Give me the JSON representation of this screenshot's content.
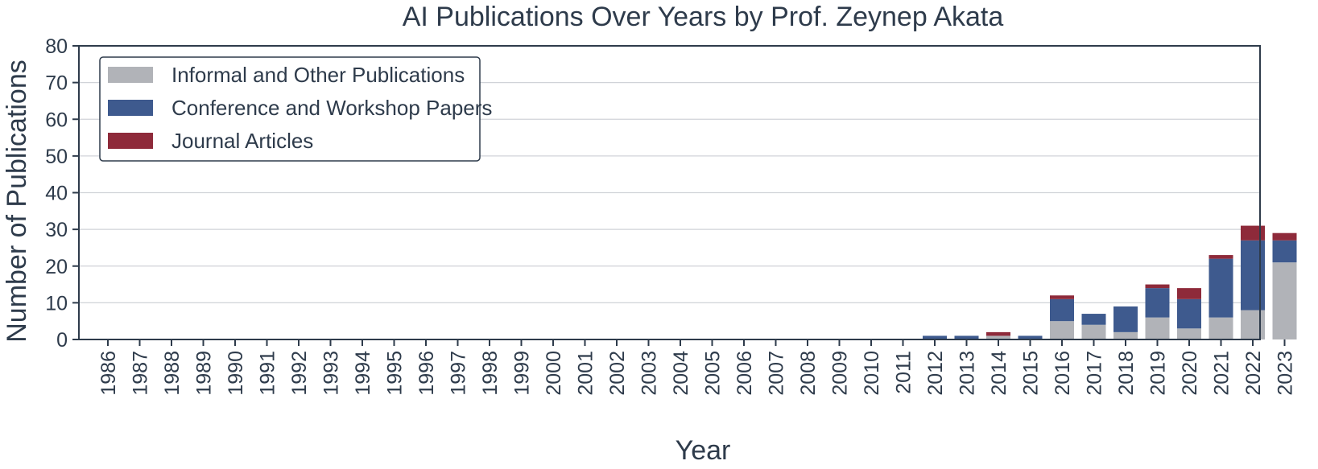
{
  "chart_data": {
    "type": "bar",
    "stacked": true,
    "title": "AI Publications Over Years by Prof. Zeynep Akata",
    "xlabel": "Year",
    "ylabel": "Number of Publications",
    "ylim": [
      0,
      80
    ],
    "yticks": [
      0,
      10,
      20,
      30,
      40,
      50,
      60,
      70,
      80
    ],
    "grid": "horizontal",
    "legend_position": "top-left",
    "categories": [
      "1986",
      "1987",
      "1988",
      "1989",
      "1990",
      "1991",
      "1992",
      "1993",
      "1994",
      "1995",
      "1996",
      "1997",
      "1998",
      "1999",
      "2000",
      "2001",
      "2002",
      "2003",
      "2004",
      "2005",
      "2006",
      "2007",
      "2008",
      "2009",
      "2010",
      "2011",
      "2012",
      "2013",
      "2014",
      "2015",
      "2016",
      "2017",
      "2018",
      "2019",
      "2020",
      "2021",
      "2022",
      "2023"
    ],
    "series": [
      {
        "name": "Informal and Other Publications",
        "color": "#b1b3b8",
        "values": [
          0,
          0,
          0,
          0,
          0,
          0,
          0,
          0,
          0,
          0,
          0,
          0,
          0,
          0,
          0,
          0,
          0,
          0,
          0,
          0,
          0,
          0,
          0,
          0,
          0,
          0,
          0,
          0,
          1,
          0,
          5,
          4,
          2,
          6,
          3,
          6,
          8,
          21
        ]
      },
      {
        "name": "Conference and Workshop Papers",
        "color": "#3e5a8e",
        "values": [
          0,
          0,
          0,
          0,
          0,
          0,
          0,
          0,
          0,
          0,
          0,
          0,
          0,
          0,
          0,
          0,
          0,
          0,
          0,
          0,
          0,
          0,
          0,
          0,
          0,
          0,
          1,
          1,
          0,
          1,
          6,
          3,
          7,
          8,
          8,
          16,
          19,
          6
        ]
      },
      {
        "name": "Journal Articles",
        "color": "#8e2a3a",
        "values": [
          0,
          0,
          0,
          0,
          0,
          0,
          0,
          0,
          0,
          0,
          0,
          0,
          0,
          0,
          0,
          0,
          0,
          0,
          0,
          0,
          0,
          0,
          0,
          0,
          0,
          0,
          0,
          0,
          1,
          0,
          1,
          0,
          0,
          1,
          3,
          1,
          4,
          2
        ]
      }
    ]
  }
}
